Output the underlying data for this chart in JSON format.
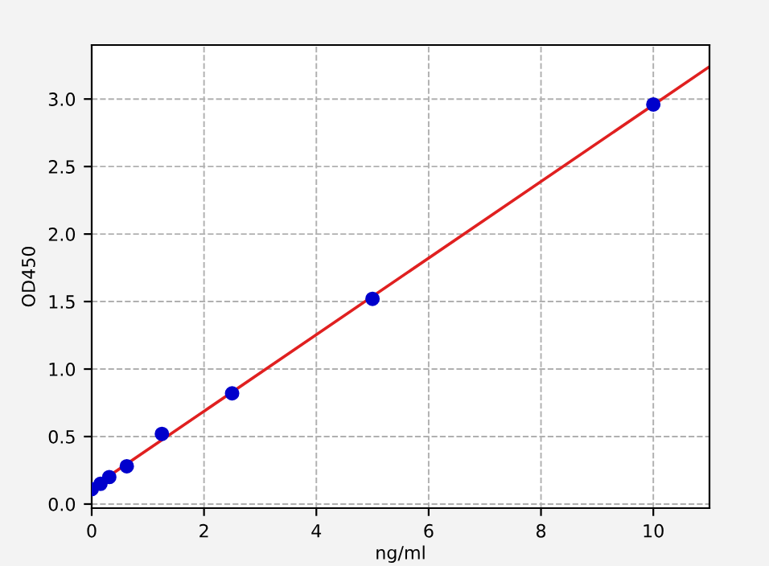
{
  "chart_data": {
    "type": "scatter",
    "xlabel": "ng/ml",
    "ylabel": "OD450",
    "series": [
      {
        "color": "#0000cc",
        "marker": "circle",
        "x": [
          0,
          0.156,
          0.3125,
          0.625,
          1.25,
          2.5,
          5,
          10
        ],
        "values": [
          0.11,
          0.15,
          0.2,
          0.28,
          0.52,
          0.82,
          1.52,
          2.96
        ]
      },
      {
        "type": "line",
        "color": "#e02020",
        "marker": "none",
        "x": [
          0,
          11
        ],
        "values": [
          0.12,
          3.24
        ]
      }
    ],
    "xlim": [
      0,
      11
    ],
    "ylim": [
      -0.03,
      3.4
    ],
    "xticks": [
      0,
      2,
      4,
      6,
      8,
      10
    ],
    "yticks": [
      {
        "value": 0,
        "label": "0.0"
      },
      0.5,
      {
        "value": 1,
        "label": "1.0"
      },
      1.5,
      {
        "value": 2,
        "label": "2.0"
      },
      2.5,
      {
        "value": 3,
        "label": "3.0"
      }
    ],
    "grid": true,
    "line_style": "solid"
  }
}
